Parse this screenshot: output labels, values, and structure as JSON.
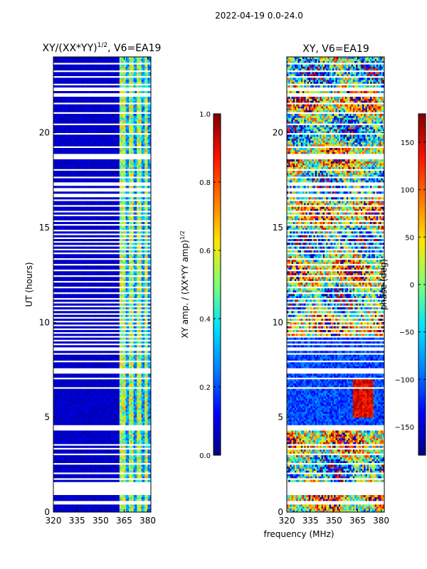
{
  "figure": {
    "suptitle": "2022-04-19 0.0-24.0",
    "shared_xlabel": "frequency (MHz)"
  },
  "colors": {
    "jet": [
      "#00007f",
      "#0000ff",
      "#0080ff",
      "#00e0ff",
      "#7dff7a",
      "#ffe600",
      "#ff7700",
      "#ff1100",
      "#7f0000"
    ],
    "gap": "#ffffff",
    "axis": "#000000"
  },
  "chart_data": [
    {
      "type": "heatmap",
      "panel": "left",
      "title_main": "XY/(XX*YY)",
      "title_exp": "1/2",
      "title_suffix": ", V6=EA19",
      "xlabel": "",
      "ylabel": "UT (hours)",
      "xlim": [
        320,
        382
      ],
      "ylim": [
        0,
        24
      ],
      "xticks": [
        320,
        335,
        350,
        365,
        380
      ],
      "yticks": [
        0,
        5,
        10,
        15,
        20
      ],
      "colorbar": {
        "label_main": "XY amp. / (XX*YY amp)",
        "label_exp": "1/2",
        "range": [
          0.0,
          1.0
        ],
        "ticks": [
          "0.0",
          "0.2",
          "0.4",
          "0.6",
          "0.8",
          "1.0"
        ],
        "tick_values": [
          0.0,
          0.2,
          0.4,
          0.6,
          0.8,
          1.0
        ]
      },
      "description": "normalized XY amplitude; mostly low (~0.05) below 362 MHz, bright bands (0.4-0.7) in 362-380 MHz",
      "bright_bands_mhz": [
        [
          362,
          366
        ],
        [
          368,
          371
        ],
        [
          373,
          376
        ],
        [
          378,
          380
        ]
      ]
    },
    {
      "type": "heatmap",
      "panel": "right",
      "title_main": "XY, V6=EA19",
      "xlabel": "",
      "ylabel": "",
      "xlim": [
        320,
        382
      ],
      "ylim": [
        0,
        24
      ],
      "xticks": [
        320,
        335,
        350,
        365,
        380
      ],
      "yticks": [
        0,
        5,
        10,
        15,
        20
      ],
      "colorbar": {
        "label_main": "phase (deg)",
        "range": [
          -180,
          180
        ],
        "ticks": [
          "−150",
          "−100",
          "−50",
          "0",
          "50",
          "100",
          "150"
        ],
        "tick_values": [
          -150,
          -100,
          -50,
          0,
          50,
          100,
          150
        ]
      },
      "description": "XY phase; mostly blue (~ -100 deg) between 4.5 and 9.3 h, noisy full-range elsewhere"
    }
  ],
  "data_gaps_hours": [
    [
      0.45,
      0.55
    ],
    [
      0.9,
      1.0
    ],
    [
      1.05,
      1.35
    ],
    [
      1.45,
      1.55
    ],
    [
      1.75,
      1.82
    ],
    [
      2.05,
      2.12
    ],
    [
      2.55,
      2.62
    ],
    [
      3.05,
      3.12
    ],
    [
      3.35,
      3.42
    ],
    [
      3.55,
      3.6
    ],
    [
      4.35,
      4.6
    ],
    [
      6.55,
      6.62
    ],
    [
      7.05,
      7.12
    ],
    [
      7.3,
      7.35
    ],
    [
      7.45,
      7.5
    ],
    [
      7.55,
      7.6
    ],
    [
      7.95,
      8.0
    ],
    [
      8.3,
      8.35
    ],
    [
      8.5,
      8.55
    ],
    [
      8.65,
      8.7
    ],
    [
      8.85,
      8.9
    ],
    [
      9.05,
      9.1
    ],
    [
      9.25,
      9.3
    ],
    [
      9.45,
      9.5
    ],
    [
      9.65,
      9.7
    ],
    [
      9.85,
      9.9
    ],
    [
      10.05,
      10.1
    ],
    [
      10.25,
      10.3
    ],
    [
      10.45,
      10.5
    ],
    [
      10.65,
      10.7
    ],
    [
      10.85,
      10.9
    ],
    [
      11.05,
      11.1
    ],
    [
      11.25,
      11.3
    ],
    [
      11.5,
      11.55
    ],
    [
      11.8,
      11.85
    ],
    [
      12.1,
      12.15
    ],
    [
      12.4,
      12.45
    ],
    [
      12.7,
      12.75
    ],
    [
      13.0,
      13.05
    ],
    [
      13.3,
      13.35
    ],
    [
      13.6,
      13.65
    ],
    [
      13.8,
      13.85
    ],
    [
      14.0,
      14.05
    ],
    [
      14.2,
      14.25
    ],
    [
      14.4,
      14.45
    ],
    [
      14.6,
      14.65
    ],
    [
      14.85,
      14.9
    ],
    [
      15.1,
      15.15
    ],
    [
      15.35,
      15.4
    ],
    [
      15.6,
      15.65
    ],
    [
      15.85,
      15.9
    ],
    [
      16.15,
      16.2
    ],
    [
      16.4,
      16.45
    ],
    [
      16.6,
      16.65
    ],
    [
      16.75,
      16.8
    ],
    [
      16.9,
      16.95
    ],
    [
      17.05,
      17.1
    ],
    [
      17.2,
      17.25
    ],
    [
      17.35,
      17.4
    ],
    [
      17.6,
      17.65
    ],
    [
      18.0,
      18.05
    ],
    [
      18.6,
      18.9
    ],
    [
      19.2,
      19.25
    ],
    [
      19.9,
      19.95
    ],
    [
      20.4,
      20.45
    ],
    [
      21.0,
      21.05
    ],
    [
      21.5,
      21.55
    ],
    [
      21.9,
      22.05
    ],
    [
      22.2,
      22.35
    ],
    [
      22.55,
      22.6
    ],
    [
      22.9,
      22.95
    ],
    [
      23.25,
      23.3
    ],
    [
      23.6,
      23.65
    ]
  ]
}
